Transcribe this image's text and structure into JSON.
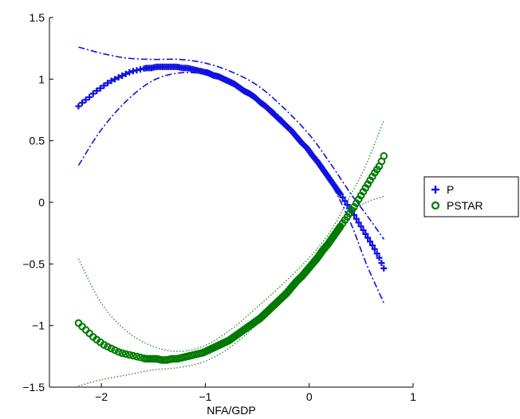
{
  "chart_data": {
    "type": "scatter",
    "title": "",
    "xlabel": "NFA/GDP",
    "ylabel": "",
    "xlim": [
      -2.5,
      1
    ],
    "ylim": [
      -1.5,
      1.5
    ],
    "xticks": [
      -2,
      -1,
      0,
      1
    ],
    "yticks": [
      -1.5,
      -1,
      -0.5,
      0,
      0.5,
      1,
      1.5
    ],
    "xtick_labels": [
      "−2",
      "−1",
      "0",
      "1"
    ],
    "ytick_labels": [
      "−1.5",
      "−1",
      "−0.5",
      "0",
      "0.5",
      "1",
      "1.5"
    ],
    "grid": false,
    "legend_position": "outside-right",
    "series": [
      {
        "name": "P",
        "marker": "plus",
        "color": "#1010e0",
        "x": [
          -2.22,
          -2.17,
          -2.12,
          -2.07,
          -2.02,
          -1.97,
          -1.92,
          -1.87,
          -1.82,
          -1.77,
          -1.72,
          -1.67,
          -1.62,
          -1.57,
          -1.52,
          -1.47,
          -1.42,
          -1.37,
          -1.32,
          -1.27,
          -1.22,
          -1.17,
          -1.12,
          -1.07,
          -1.02,
          -0.97,
          -0.92,
          -0.87,
          -0.82,
          -0.77,
          -0.72,
          -0.67,
          -0.62,
          -0.57,
          -0.52,
          -0.47,
          -0.42,
          -0.37,
          -0.32,
          -0.27,
          -0.22,
          -0.17,
          -0.12,
          -0.07,
          -0.02,
          0.03,
          0.08,
          0.13,
          0.18,
          0.23,
          0.28,
          0.33,
          0.38,
          0.43,
          0.48,
          0.53,
          0.58,
          0.63,
          0.68,
          0.72
        ],
        "y": [
          0.78,
          0.82,
          0.85,
          0.89,
          0.92,
          0.95,
          0.98,
          1.0,
          1.02,
          1.04,
          1.06,
          1.07,
          1.08,
          1.09,
          1.09,
          1.1,
          1.1,
          1.1,
          1.1,
          1.1,
          1.09,
          1.09,
          1.08,
          1.07,
          1.06,
          1.05,
          1.03,
          1.02,
          1.0,
          0.98,
          0.96,
          0.93,
          0.9,
          0.88,
          0.85,
          0.81,
          0.78,
          0.74,
          0.7,
          0.66,
          0.62,
          0.58,
          0.53,
          0.48,
          0.44,
          0.38,
          0.33,
          0.27,
          0.21,
          0.15,
          0.09,
          0.03,
          -0.04,
          -0.1,
          -0.17,
          -0.24,
          -0.31,
          -0.38,
          -0.46,
          -0.54
        ]
      },
      {
        "name": "PSTAR",
        "marker": "circle",
        "color": "#007a00",
        "x": [
          -2.22,
          -2.17,
          -2.12,
          -2.07,
          -2.02,
          -1.97,
          -1.92,
          -1.87,
          -1.82,
          -1.77,
          -1.72,
          -1.67,
          -1.62,
          -1.57,
          -1.52,
          -1.47,
          -1.42,
          -1.37,
          -1.32,
          -1.27,
          -1.22,
          -1.17,
          -1.12,
          -1.07,
          -1.02,
          -0.97,
          -0.92,
          -0.87,
          -0.82,
          -0.77,
          -0.72,
          -0.67,
          -0.62,
          -0.57,
          -0.52,
          -0.47,
          -0.42,
          -0.37,
          -0.32,
          -0.27,
          -0.22,
          -0.17,
          -0.12,
          -0.07,
          -0.02,
          0.03,
          0.08,
          0.13,
          0.18,
          0.23,
          0.28,
          0.33,
          0.38,
          0.43,
          0.48,
          0.53,
          0.58,
          0.63,
          0.68,
          0.72
        ],
        "y": [
          -0.98,
          -1.02,
          -1.06,
          -1.1,
          -1.13,
          -1.16,
          -1.18,
          -1.2,
          -1.22,
          -1.23,
          -1.24,
          -1.25,
          -1.26,
          -1.27,
          -1.27,
          -1.27,
          -1.28,
          -1.28,
          -1.27,
          -1.27,
          -1.26,
          -1.25,
          -1.24,
          -1.23,
          -1.22,
          -1.2,
          -1.18,
          -1.16,
          -1.14,
          -1.12,
          -1.09,
          -1.06,
          -1.03,
          -1.0,
          -0.97,
          -0.94,
          -0.9,
          -0.86,
          -0.82,
          -0.78,
          -0.74,
          -0.69,
          -0.64,
          -0.6,
          -0.55,
          -0.5,
          -0.45,
          -0.39,
          -0.34,
          -0.28,
          -0.22,
          -0.16,
          -0.1,
          -0.04,
          0.03,
          0.1,
          0.17,
          0.24,
          0.3,
          0.38
        ]
      }
    ],
    "bands": [
      {
        "series": "P",
        "style": "dashdot",
        "color": "#1010e0",
        "x": [
          -2.22,
          -2.0,
          -1.75,
          -1.5,
          -1.25,
          -1.0,
          -0.75,
          -0.5,
          -0.25,
          0.0,
          0.2,
          0.4,
          0.55,
          0.72
        ],
        "upper": [
          1.26,
          1.21,
          1.17,
          1.16,
          1.16,
          1.13,
          1.06,
          0.95,
          0.77,
          0.55,
          0.32,
          0.07,
          -0.1,
          -0.3
        ],
        "lower": [
          0.3,
          0.59,
          0.83,
          0.99,
          1.05,
          1.04,
          0.97,
          0.85,
          0.67,
          0.42,
          0.17,
          -0.17,
          -0.5,
          -0.82
        ]
      },
      {
        "series": "PSTAR",
        "style": "dotted",
        "color": "#007a00",
        "x": [
          -2.22,
          -2.0,
          -1.75,
          -1.5,
          -1.25,
          -1.0,
          -0.75,
          -0.5,
          -0.25,
          0.0,
          0.2,
          0.4,
          0.55,
          0.72
        ],
        "upper": [
          -0.46,
          -0.82,
          -1.05,
          -1.17,
          -1.21,
          -1.16,
          -1.03,
          -0.85,
          -0.66,
          -0.45,
          -0.24,
          0.06,
          0.31,
          0.67
        ],
        "lower": [
          -1.49,
          -1.44,
          -1.4,
          -1.36,
          -1.34,
          -1.29,
          -1.17,
          -0.99,
          -0.78,
          -0.55,
          -0.33,
          -0.08,
          0.0,
          0.05
        ]
      }
    ]
  }
}
